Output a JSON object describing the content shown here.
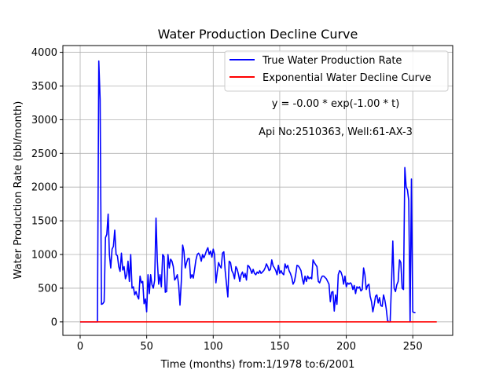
{
  "chart_data": {
    "type": "line",
    "title": "Water Production Decline Curve",
    "xlabel": "Time (months) from:1/1978 to:6/2001",
    "ylabel": "Water Production Rate (bbl/month)",
    "xlim": [
      -13,
      280
    ],
    "ylim": [
      -200,
      4100
    ],
    "xticks": [
      0,
      50,
      100,
      150,
      200,
      250
    ],
    "yticks": [
      0,
      500,
      1000,
      1500,
      2000,
      2500,
      3000,
      3500,
      4000
    ],
    "grid": true,
    "legend": "top-right",
    "annotations": [
      "y = -0.00 * exp(-1.00 * t)",
      "Api No:2510363, Well:61-AX-3"
    ],
    "series": [
      {
        "name": "True Water Production Rate",
        "color": "#0000ff",
        "points": [
          [
            0,
            0
          ],
          [
            13,
            0
          ],
          [
            14,
            3870
          ],
          [
            15,
            3300
          ],
          [
            16,
            260
          ],
          [
            17,
            270
          ],
          [
            18,
            300
          ],
          [
            19,
            1250
          ],
          [
            20,
            1300
          ],
          [
            21,
            1600
          ],
          [
            22,
            1000
          ],
          [
            23,
            800
          ],
          [
            24,
            1080
          ],
          [
            25,
            1120
          ],
          [
            26,
            1360
          ],
          [
            27,
            1000
          ],
          [
            28,
            980
          ],
          [
            29,
            820
          ],
          [
            30,
            750
          ],
          [
            31,
            1020
          ],
          [
            32,
            770
          ],
          [
            33,
            820
          ],
          [
            34,
            640
          ],
          [
            35,
            700
          ],
          [
            36,
            900
          ],
          [
            37,
            600
          ],
          [
            38,
            1000
          ],
          [
            39,
            500
          ],
          [
            40,
            520
          ],
          [
            41,
            400
          ],
          [
            42,
            450
          ],
          [
            43,
            380
          ],
          [
            44,
            340
          ],
          [
            45,
            680
          ],
          [
            46,
            580
          ],
          [
            47,
            600
          ],
          [
            48,
            270
          ],
          [
            49,
            340
          ],
          [
            50,
            150
          ],
          [
            51,
            700
          ],
          [
            52,
            420
          ],
          [
            53,
            700
          ],
          [
            54,
            550
          ],
          [
            55,
            500
          ],
          [
            56,
            620
          ],
          [
            57,
            1540
          ],
          [
            58,
            900
          ],
          [
            59,
            560
          ],
          [
            60,
            700
          ],
          [
            61,
            520
          ],
          [
            62,
            1000
          ],
          [
            63,
            970
          ],
          [
            64,
            440
          ],
          [
            65,
            450
          ],
          [
            66,
            1000
          ],
          [
            67,
            800
          ],
          [
            68,
            930
          ],
          [
            69,
            900
          ],
          [
            70,
            820
          ],
          [
            71,
            620
          ],
          [
            72,
            650
          ],
          [
            73,
            700
          ],
          [
            74,
            550
          ],
          [
            75,
            250
          ],
          [
            76,
            600
          ],
          [
            77,
            1140
          ],
          [
            78,
            1050
          ],
          [
            79,
            800
          ],
          [
            80,
            880
          ],
          [
            81,
            940
          ],
          [
            82,
            940
          ],
          [
            83,
            650
          ],
          [
            84,
            700
          ],
          [
            85,
            650
          ],
          [
            86,
            780
          ],
          [
            87,
            920
          ],
          [
            88,
            1000
          ],
          [
            89,
            1020
          ],
          [
            90,
            980
          ],
          [
            91,
            900
          ],
          [
            92,
            1000
          ],
          [
            93,
            950
          ],
          [
            94,
            1000
          ],
          [
            95,
            1060
          ],
          [
            96,
            1100
          ],
          [
            97,
            1000
          ],
          [
            98,
            1050
          ],
          [
            99,
            960
          ],
          [
            100,
            1080
          ],
          [
            101,
            1000
          ],
          [
            102,
            580
          ],
          [
            103,
            740
          ],
          [
            104,
            880
          ],
          [
            105,
            830
          ],
          [
            106,
            800
          ],
          [
            107,
            1020
          ],
          [
            108,
            1040
          ],
          [
            109,
            760
          ],
          [
            110,
            560
          ],
          [
            111,
            370
          ],
          [
            112,
            900
          ],
          [
            113,
            880
          ],
          [
            114,
            760
          ],
          [
            115,
            720
          ],
          [
            116,
            640
          ],
          [
            117,
            820
          ],
          [
            118,
            780
          ],
          [
            119,
            700
          ],
          [
            120,
            600
          ],
          [
            121,
            700
          ],
          [
            122,
            740
          ],
          [
            123,
            660
          ],
          [
            124,
            720
          ],
          [
            125,
            620
          ],
          [
            126,
            840
          ],
          [
            127,
            820
          ],
          [
            128,
            780
          ],
          [
            129,
            720
          ],
          [
            130,
            780
          ],
          [
            131,
            720
          ],
          [
            132,
            700
          ],
          [
            133,
            740
          ],
          [
            134,
            720
          ],
          [
            135,
            760
          ],
          [
            136,
            720
          ],
          [
            137,
            740
          ],
          [
            138,
            760
          ],
          [
            139,
            800
          ],
          [
            140,
            860
          ],
          [
            141,
            820
          ],
          [
            142,
            760
          ],
          [
            143,
            780
          ],
          [
            144,
            920
          ],
          [
            145,
            830
          ],
          [
            146,
            800
          ],
          [
            147,
            760
          ],
          [
            148,
            700
          ],
          [
            149,
            840
          ],
          [
            150,
            720
          ],
          [
            151,
            760
          ],
          [
            152,
            720
          ],
          [
            153,
            700
          ],
          [
            154,
            860
          ],
          [
            155,
            800
          ],
          [
            156,
            840
          ],
          [
            157,
            760
          ],
          [
            158,
            720
          ],
          [
            159,
            660
          ],
          [
            160,
            560
          ],
          [
            161,
            600
          ],
          [
            162,
            700
          ],
          [
            163,
            840
          ],
          [
            164,
            830
          ],
          [
            165,
            800
          ],
          [
            166,
            760
          ],
          [
            167,
            640
          ],
          [
            168,
            560
          ],
          [
            169,
            680
          ],
          [
            170,
            600
          ],
          [
            171,
            680
          ],
          [
            172,
            640
          ],
          [
            173,
            660
          ],
          [
            174,
            640
          ],
          [
            175,
            920
          ],
          [
            176,
            880
          ],
          [
            177,
            850
          ],
          [
            178,
            820
          ],
          [
            179,
            600
          ],
          [
            180,
            580
          ],
          [
            181,
            640
          ],
          [
            182,
            680
          ],
          [
            183,
            680
          ],
          [
            184,
            660
          ],
          [
            185,
            640
          ],
          [
            186,
            600
          ],
          [
            187,
            560
          ],
          [
            188,
            300
          ],
          [
            189,
            440
          ],
          [
            190,
            450
          ],
          [
            191,
            160
          ],
          [
            192,
            400
          ],
          [
            193,
            260
          ],
          [
            194,
            700
          ],
          [
            195,
            760
          ],
          [
            196,
            740
          ],
          [
            197,
            680
          ],
          [
            198,
            560
          ],
          [
            199,
            680
          ],
          [
            200,
            520
          ],
          [
            201,
            580
          ],
          [
            202,
            560
          ],
          [
            203,
            580
          ],
          [
            204,
            560
          ],
          [
            205,
            480
          ],
          [
            206,
            540
          ],
          [
            207,
            420
          ],
          [
            208,
            520
          ],
          [
            209,
            500
          ],
          [
            210,
            520
          ],
          [
            211,
            460
          ],
          [
            212,
            480
          ],
          [
            213,
            800
          ],
          [
            214,
            700
          ],
          [
            215,
            480
          ],
          [
            216,
            540
          ],
          [
            217,
            560
          ],
          [
            218,
            380
          ],
          [
            219,
            300
          ],
          [
            220,
            150
          ],
          [
            221,
            250
          ],
          [
            222,
            380
          ],
          [
            223,
            400
          ],
          [
            224,
            280
          ],
          [
            225,
            360
          ],
          [
            226,
            240
          ],
          [
            227,
            230
          ],
          [
            228,
            400
          ],
          [
            229,
            320
          ],
          [
            230,
            200
          ],
          [
            231,
            20
          ],
          [
            232,
            0
          ],
          [
            233,
            0
          ],
          [
            234,
            550
          ],
          [
            235,
            1200
          ],
          [
            236,
            500
          ],
          [
            237,
            450
          ],
          [
            238,
            550
          ],
          [
            239,
            600
          ],
          [
            240,
            920
          ],
          [
            241,
            880
          ],
          [
            242,
            500
          ],
          [
            243,
            480
          ],
          [
            244,
            2290
          ],
          [
            245,
            2000
          ],
          [
            246,
            1960
          ],
          [
            247,
            1800
          ],
          [
            248,
            0
          ],
          [
            249,
            2120
          ],
          [
            250,
            150
          ],
          [
            251,
            140
          ],
          [
            252,
            140
          ]
        ]
      },
      {
        "name": "Exponential Water Decline Curve",
        "color": "#ff0000",
        "points": [
          [
            0,
            0
          ],
          [
            268,
            0
          ]
        ]
      }
    ]
  }
}
